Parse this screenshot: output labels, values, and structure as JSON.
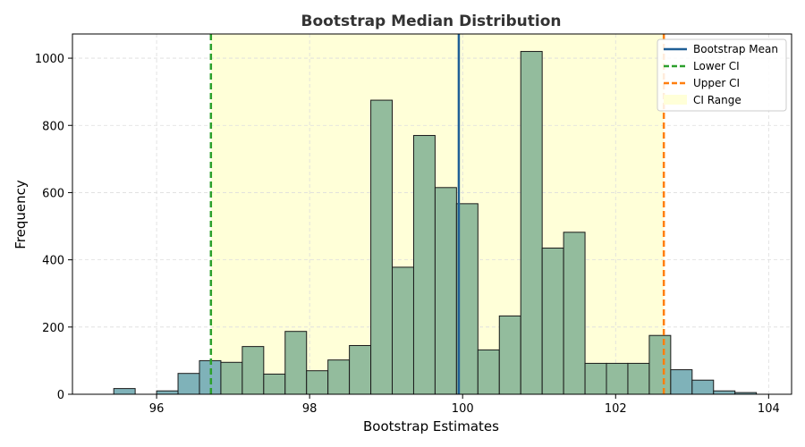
{
  "chart_data": {
    "type": "bar",
    "title": "Bootstrap Median Distribution",
    "xlabel": "Bootstrap Estimates",
    "ylabel": "Frequency",
    "xlim": [
      94.9,
      104.3
    ],
    "ylim": [
      0,
      1072
    ],
    "xticks": [
      96,
      98,
      100,
      102,
      104
    ],
    "yticks": [
      0,
      200,
      400,
      600,
      800,
      1000
    ],
    "grid": true,
    "legend_position": "top-right",
    "bins": [
      {
        "x0": 95.44,
        "x1": 95.72,
        "count": 17
      },
      {
        "x0": 95.72,
        "x1": 96.0,
        "count": 0
      },
      {
        "x0": 96.0,
        "x1": 96.28,
        "count": 10
      },
      {
        "x0": 96.28,
        "x1": 96.56,
        "count": 62
      },
      {
        "x0": 96.56,
        "x1": 96.84,
        "count": 100
      },
      {
        "x0": 96.84,
        "x1": 97.12,
        "count": 95
      },
      {
        "x0": 97.12,
        "x1": 97.4,
        "count": 142
      },
      {
        "x0": 97.4,
        "x1": 97.68,
        "count": 60
      },
      {
        "x0": 97.68,
        "x1": 97.96,
        "count": 187
      },
      {
        "x0": 97.96,
        "x1": 98.24,
        "count": 70
      },
      {
        "x0": 98.24,
        "x1": 98.52,
        "count": 102
      },
      {
        "x0": 98.52,
        "x1": 98.8,
        "count": 145
      },
      {
        "x0": 98.8,
        "x1": 99.08,
        "count": 875
      },
      {
        "x0": 99.08,
        "x1": 99.36,
        "count": 378
      },
      {
        "x0": 99.36,
        "x1": 99.64,
        "count": 770
      },
      {
        "x0": 99.64,
        "x1": 99.92,
        "count": 615
      },
      {
        "x0": 99.92,
        "x1": 100.2,
        "count": 567
      },
      {
        "x0": 100.2,
        "x1": 100.48,
        "count": 132
      },
      {
        "x0": 100.48,
        "x1": 100.76,
        "count": 233
      },
      {
        "x0": 100.76,
        "x1": 101.04,
        "count": 1020
      },
      {
        "x0": 101.04,
        "x1": 101.32,
        "count": 435
      },
      {
        "x0": 101.32,
        "x1": 101.6,
        "count": 482
      },
      {
        "x0": 101.6,
        "x1": 101.88,
        "count": 92
      },
      {
        "x0": 101.88,
        "x1": 102.16,
        "count": 92
      },
      {
        "x0": 102.16,
        "x1": 102.44,
        "count": 92
      },
      {
        "x0": 102.44,
        "x1": 102.72,
        "count": 175
      },
      {
        "x0": 102.72,
        "x1": 103.0,
        "count": 73
      },
      {
        "x0": 103.0,
        "x1": 103.28,
        "count": 42
      },
      {
        "x0": 103.28,
        "x1": 103.56,
        "count": 10
      },
      {
        "x0": 103.56,
        "x1": 103.84,
        "count": 5
      }
    ],
    "bootstrap_mean": 99.95,
    "lower_ci": 96.71,
    "upper_ci": 102.63,
    "legend": {
      "mean": "Bootstrap Mean",
      "lower": "Lower CI",
      "upper": "Upper CI",
      "range": "CI Range"
    },
    "colors": {
      "bar_inside": "#93bc9d",
      "bar_outside": "#7fb2b9",
      "bar_edge": "#1a1a1a",
      "ci_range": "#ffffd8",
      "mean": "#1f5f96",
      "lower": "#2ca02c",
      "upper": "#ff7f0e",
      "grid": "#dddddd"
    }
  }
}
